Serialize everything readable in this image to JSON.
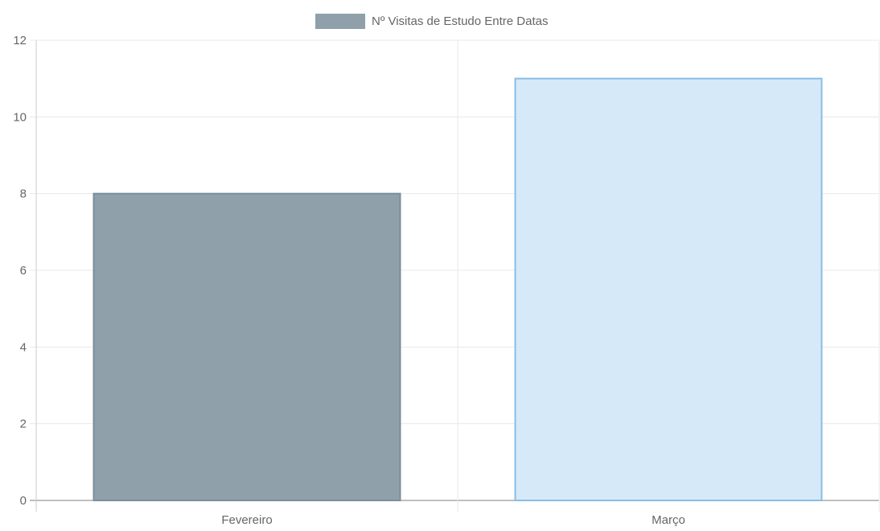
{
  "chart_data": {
    "type": "bar",
    "categories": [
      "Fevereiro",
      "Março"
    ],
    "series": [
      {
        "name": "Nº Visitas de Estudo Entre Datas",
        "values": [
          8,
          11
        ]
      }
    ],
    "bar_colors": [
      {
        "fill": "#8fa0ab",
        "border": "#7b8e9c"
      },
      {
        "fill": "#d6e9f8",
        "border": "#89bde6"
      }
    ],
    "legend_color": "#8fa0ab",
    "y_ticks": [
      "0",
      "2",
      "4",
      "6",
      "8",
      "10",
      "12"
    ],
    "ylim": [
      0,
      12
    ],
    "grid": true,
    "legend_position": "top"
  }
}
